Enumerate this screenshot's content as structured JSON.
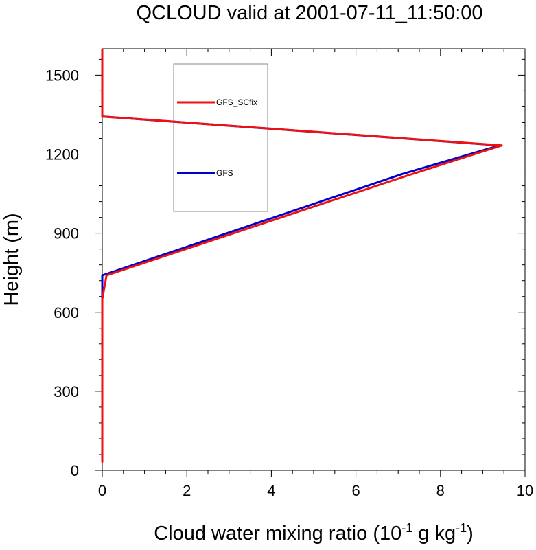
{
  "chart_data": {
    "type": "line",
    "title": "QCLOUD valid at 2001-07-11_11:50:00",
    "xlabel_parts": {
      "prefix": "Cloud water mixing ratio (10",
      "sup1": "-1",
      "middle": " g kg",
      "sup2": "-1",
      "suffix": ")"
    },
    "ylabel": "Height (m)",
    "xlim": [
      0,
      10
    ],
    "ylim": [
      0,
      1600
    ],
    "x_ticks": [
      0,
      2,
      4,
      6,
      8,
      10
    ],
    "y_ticks": [
      0,
      300,
      600,
      900,
      1200,
      1500
    ],
    "x_tick_labels": [
      "0",
      "2",
      "4",
      "6",
      "8",
      "10"
    ],
    "y_tick_labels": [
      "0",
      "300",
      "600",
      "900",
      "1200",
      "1500"
    ],
    "legend_placement": "top-left",
    "series": [
      {
        "name": "GFS",
        "color": "#0000cc",
        "points": [
          {
            "x": 0.0,
            "y": 30
          },
          {
            "x": 0.0,
            "y": 650
          },
          {
            "x": 0.0,
            "y": 740
          },
          {
            "x": 7.1,
            "y": 1125
          },
          {
            "x": 9.4,
            "y": 1233
          },
          {
            "x": 0.0,
            "y": 1343
          },
          {
            "x": 0.0,
            "y": 1600
          }
        ]
      },
      {
        "name": "GFS_SCfix",
        "color": "#ee1111",
        "points": [
          {
            "x": 0.0,
            "y": 30
          },
          {
            "x": 0.0,
            "y": 650
          },
          {
            "x": 0.1,
            "y": 740
          },
          {
            "x": 7.2,
            "y": 1118
          },
          {
            "x": 9.45,
            "y": 1233
          },
          {
            "x": 0.0,
            "y": 1343
          },
          {
            "x": 0.0,
            "y": 1600
          }
        ]
      }
    ]
  }
}
